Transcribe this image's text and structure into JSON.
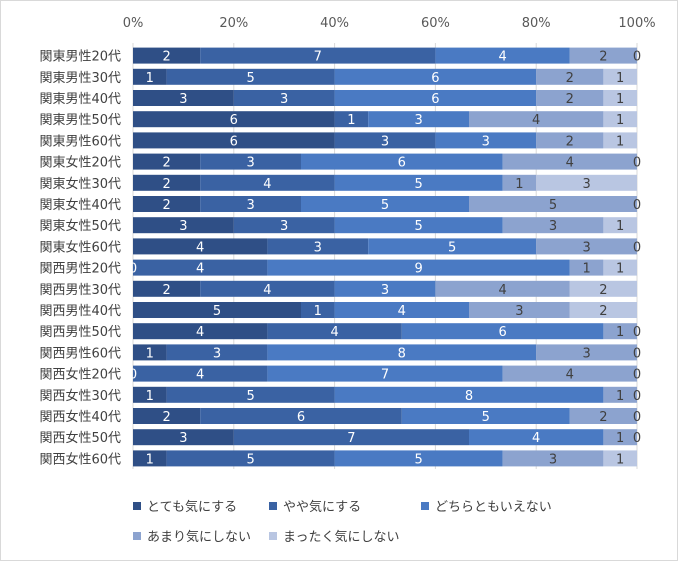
{
  "chart_data": {
    "type": "bar",
    "orientation": "horizontal",
    "stacking": "percent",
    "categories": [
      "関東男性20代",
      "関東男性30代",
      "関東男性40代",
      "関東男性50代",
      "関東男性60代",
      "関東女性20代",
      "関東女性30代",
      "関東女性40代",
      "関東女性50代",
      "関東女性60代",
      "関西男性20代",
      "関西男性30代",
      "関西男性40代",
      "関西男性50代",
      "関西男性60代",
      "関西女性20代",
      "関西女性30代",
      "関西女性40代",
      "関西女性50代",
      "関西女性60代"
    ],
    "series": [
      {
        "name": "とても気にする",
        "color": "#2f4f86",
        "values": [
          2,
          1,
          3,
          6,
          6,
          2,
          2,
          2,
          3,
          4,
          0,
          2,
          5,
          4,
          1,
          0,
          1,
          2,
          3,
          1
        ]
      },
      {
        "name": "やや気にする",
        "color": "#3a62a3",
        "values": [
          7,
          5,
          3,
          1,
          3,
          3,
          4,
          3,
          3,
          3,
          4,
          4,
          1,
          4,
          3,
          4,
          5,
          6,
          7,
          5
        ]
      },
      {
        "name": "どちらともいえない",
        "color": "#4a7ac3",
        "values": [
          4,
          6,
          6,
          3,
          3,
          6,
          5,
          5,
          5,
          5,
          9,
          3,
          4,
          6,
          8,
          7,
          8,
          5,
          4,
          5
        ]
      },
      {
        "name": "あまり気にしない",
        "color": "#8ca3cf",
        "values": [
          2,
          2,
          2,
          4,
          2,
          4,
          1,
          5,
          3,
          3,
          1,
          4,
          3,
          1,
          3,
          4,
          1,
          2,
          1,
          3
        ]
      },
      {
        "name": "まったく気にしない",
        "color": "#b9c6e2",
        "values": [
          0,
          1,
          1,
          1,
          1,
          0,
          3,
          0,
          1,
          0,
          1,
          2,
          2,
          0,
          0,
          0,
          0,
          0,
          0,
          1
        ]
      }
    ],
    "xlim": [
      0,
      100
    ],
    "x_ticks": [
      "0%",
      "20%",
      "40%",
      "60%",
      "80%",
      "100%"
    ],
    "grid": true,
    "legend_position": "bottom"
  }
}
